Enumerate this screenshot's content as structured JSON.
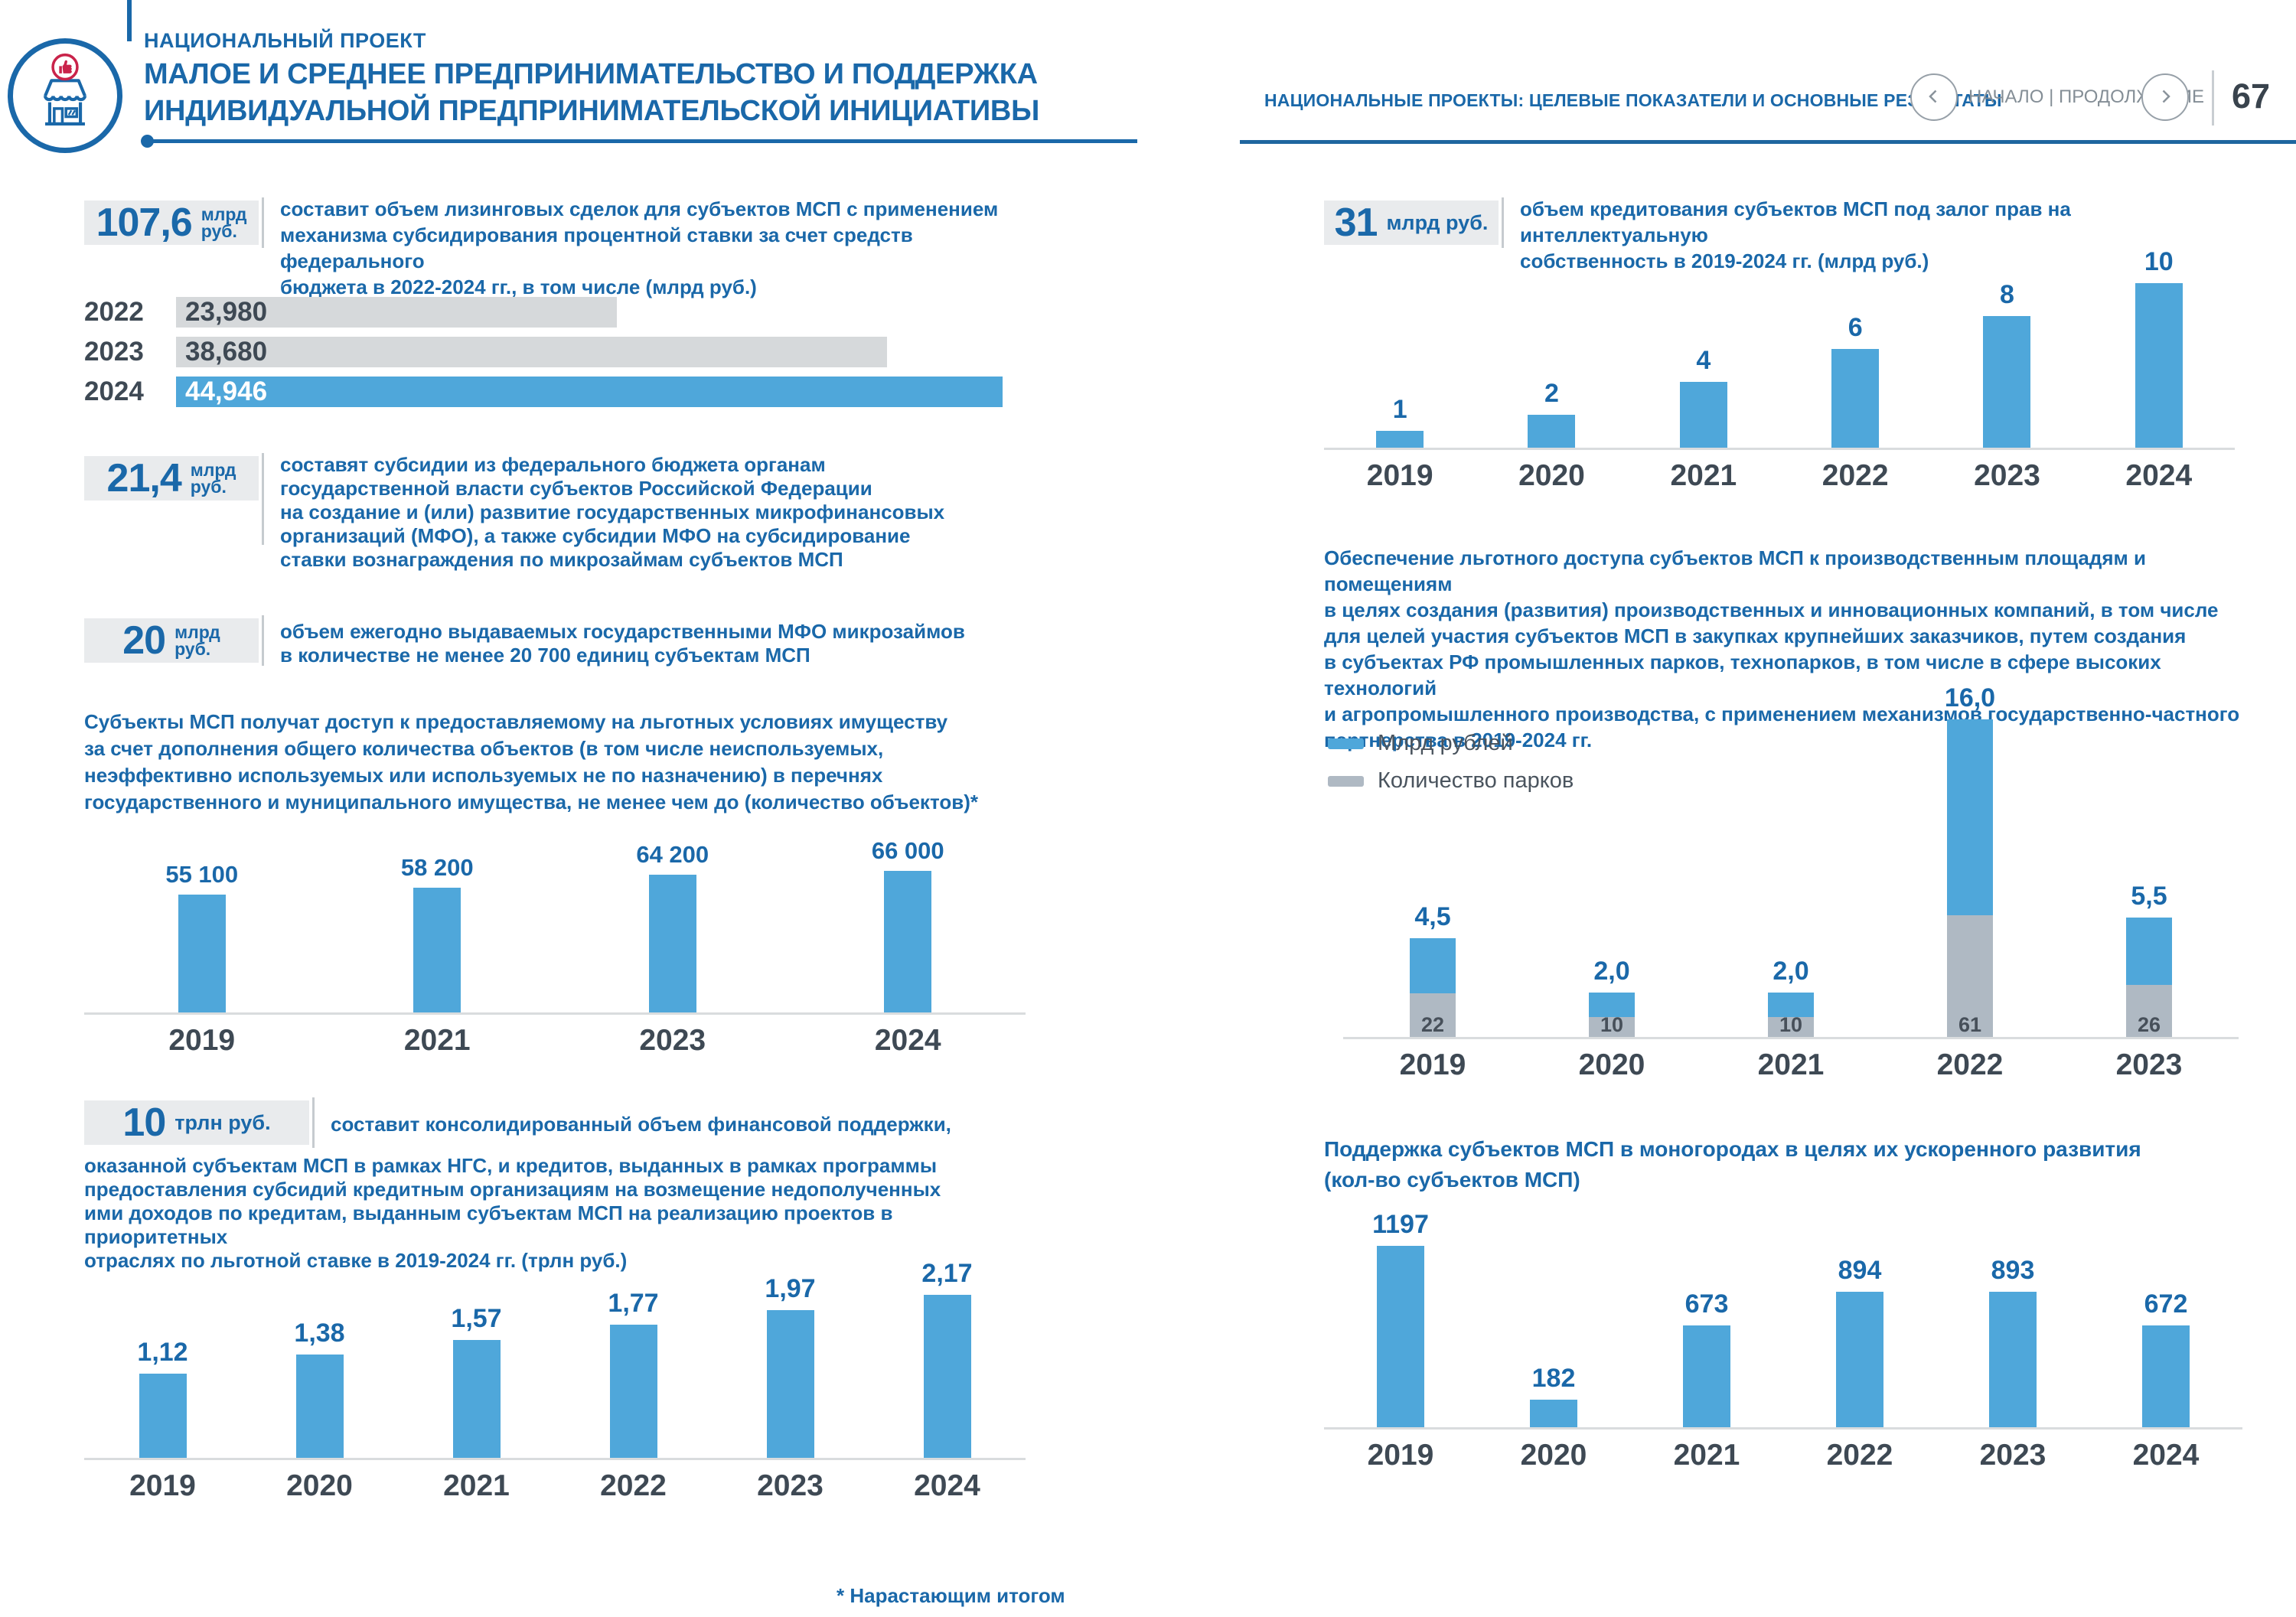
{
  "header": {
    "kicker": "НАЦИОНАЛЬНЫЙ ПРОЕКТ",
    "title_line1": "МАЛОЕ И СРЕДНЕЕ ПРЕДПРИНИМАТЕЛЬСТВО И ПОДДЕРЖКА",
    "title_line2": "ИНДИВИДУАЛЬНОЙ ПРЕДПРИНИМАТЕЛЬСКОЙ ИНИЦИАТИВЫ",
    "section_label": "НАЦИОНАЛЬНЫЕ ПРОЕКТЫ: ЦЕЛЕВЫЕ ПОКАЗАТЕЛИ И ОСНОВНЫЕ РЕЗУЛЬТАТЫ",
    "nav_label": "НАЧАЛО | ПРОДОЛЖЕНИЕ",
    "page_number": "67"
  },
  "stats": {
    "leasing": {
      "value": "107,6",
      "unit_line1": "млрд",
      "unit_line2": "руб.",
      "desc": "составит объем лизинговых сделок для субъектов МСП с применением\nмеханизма субсидирования процентной ставки за счет средств федерального\nбюджета в 2022-2024 гг., в том числе (млрд руб.)"
    },
    "subsidies": {
      "value": "21,4",
      "unit_line1": "млрд",
      "unit_line2": "руб.",
      "desc": "составят субсидии из федерального бюджета органам\nгосударственной власти субъектов Российской Федерации\nна создание и (или) развитие государственных микрофинансовых\nорганизаций (МФО), а также субсидии МФО на субсидирование\nставки вознаграждения по микрозаймам субъектов МСП"
    },
    "microloans": {
      "value": "20",
      "unit_line1": "млрд",
      "unit_line2": "руб.",
      "desc": "объем ежегодно выдаваемых государственными МФО микрозаймов\nв количестве не менее 20 700 единиц субъектам МСП"
    },
    "consolidated": {
      "value": "10",
      "unit": "трлн руб.",
      "desc_line1": "составит консолидированный объем финансовой поддержки,",
      "desc_rest": "оказанной субъектам МСП в рамках НГС, и кредитов, выданных в рамках программы\nпредоставления субсидий кредитным организациям на возмещение недополученных\nими доходов по кредитам, выданным субъектам МСП на реализацию проектов в приоритетных\nотраслях по льготной ставке в 2019-2024 гг. (трлн руб.)"
    },
    "ip_credit": {
      "value": "31",
      "unit": "млрд руб.",
      "desc": "объем кредитования субъектов МСП под залог прав на интеллектуальную\nсобственность в 2019-2024 гг. (млрд руб.)"
    }
  },
  "paragraphs": {
    "property": "Субъекты МСП получат доступ к предоставляемому на льготных условиях имуществу\nза счет дополнения общего количества объектов (в том числе неиспользуемых,\nнеэффективно используемых или используемых не по назначению) в перечнях\nгосударственного и муниципального имущества, не менее чем до (количество объектов)*",
    "parks": "Обеспечение льготного доступа субъектов МСП к производственным площадям и помещениям\nв целях создания (развития) производственных и инновационных компаний, в том числе\nдля целей участия субъектов МСП в закупках крупнейших заказчиков, путем создания\nв субъектах РФ промышленных парков, технопарков, в том числе в сфере высоких технологий\nи агропромышленного производства, с применением механизмов государственно-частного\nпартнерства в 2019-2024 гг.",
    "monotowns": "Поддержка субъектов МСП в моногородах в целях их ускоренного развития\n(кол-во субъектов МСП)"
  },
  "legend": {
    "items": [
      {
        "label": "Млрд рублей",
        "color": "#4FA7DA"
      },
      {
        "label": "Количество парков",
        "color": "#AFB9C3"
      }
    ]
  },
  "footnote": "* Нарастающим итогом",
  "colors": {
    "accent_blue": "#1A68A9",
    "bar_blue": "#4FA7DA",
    "bar_gray": "#D6D9DB",
    "stack_gray": "#AFB9C3",
    "year_text": "#3E4954",
    "badge_red": "#C9234A"
  },
  "chart_data": [
    {
      "id": "leasing",
      "type": "bar",
      "title": "Объем лизинговых сделок для субъектов МСП в 2022-2024 гг. (млрд руб.)",
      "orientation": "horizontal",
      "categories": [
        "2022",
        "2023",
        "2024"
      ],
      "values": [
        23980,
        38680,
        44946
      ],
      "labels": [
        "23,980",
        "38,680",
        "44,946"
      ],
      "highlight_last": true,
      "ylabel": "млрд руб."
    },
    {
      "id": "property",
      "type": "bar",
      "title": "Количество объектов в перечнях государственного и муниципального имущества",
      "categories": [
        "2019",
        "2021",
        "2023",
        "2024"
      ],
      "values": [
        55100,
        58200,
        64200,
        66000
      ],
      "labels": [
        "55 100",
        "58 200",
        "64 200",
        "66 000"
      ]
    },
    {
      "id": "finance",
      "type": "bar",
      "title": "Консолидированный объем финансовой поддержки в 2019-2024 гг. (трлн руб.)",
      "categories": [
        "2019",
        "2020",
        "2021",
        "2022",
        "2023",
        "2024"
      ],
      "values": [
        1.12,
        1.38,
        1.57,
        1.77,
        1.97,
        2.17
      ],
      "labels": [
        "1,12",
        "1,38",
        "1,57",
        "1,77",
        "1,97",
        "2,17"
      ],
      "ylabel": "трлн руб."
    },
    {
      "id": "ip_credit",
      "type": "bar",
      "title": "Объем кредитования субъектов МСП под залог прав на интеллектуальную собственность в 2019-2024 гг. (млрд руб.)",
      "categories": [
        "2019",
        "2020",
        "2021",
        "2022",
        "2023",
        "2024"
      ],
      "values": [
        1,
        2,
        4,
        6,
        8,
        10
      ],
      "labels": [
        "1",
        "2",
        "4",
        "6",
        "8",
        "10"
      ],
      "ylabel": "млрд руб."
    },
    {
      "id": "parks",
      "type": "bar",
      "title": "Создание в субъектах РФ промышленных парков, технопарков в 2019-2024 гг.",
      "stacked": true,
      "categories": [
        "2019",
        "2020",
        "2021",
        "2022",
        "2023"
      ],
      "series": [
        {
          "name": "Млрд рублей",
          "values": [
            4.5,
            2.0,
            2.0,
            16.0,
            5.5
          ],
          "labels": [
            "4,5",
            "2,0",
            "2,0",
            "16,0",
            "5,5"
          ]
        },
        {
          "name": "Количество парков",
          "values": [
            22,
            10,
            10,
            61,
            26
          ],
          "labels": [
            "22",
            "10",
            "10",
            "61",
            "26"
          ]
        }
      ],
      "legend_position": "left"
    },
    {
      "id": "monotowns",
      "type": "bar",
      "title": "Поддержка субъектов МСП в моногородах в целях их ускоренного развития (кол-во субъектов МСП)",
      "categories": [
        "2019",
        "2020",
        "2021",
        "2022",
        "2023",
        "2024"
      ],
      "values": [
        1197,
        182,
        673,
        894,
        893,
        672
      ],
      "labels": [
        "1197",
        "182",
        "673",
        "894",
        "893",
        "672"
      ]
    }
  ]
}
